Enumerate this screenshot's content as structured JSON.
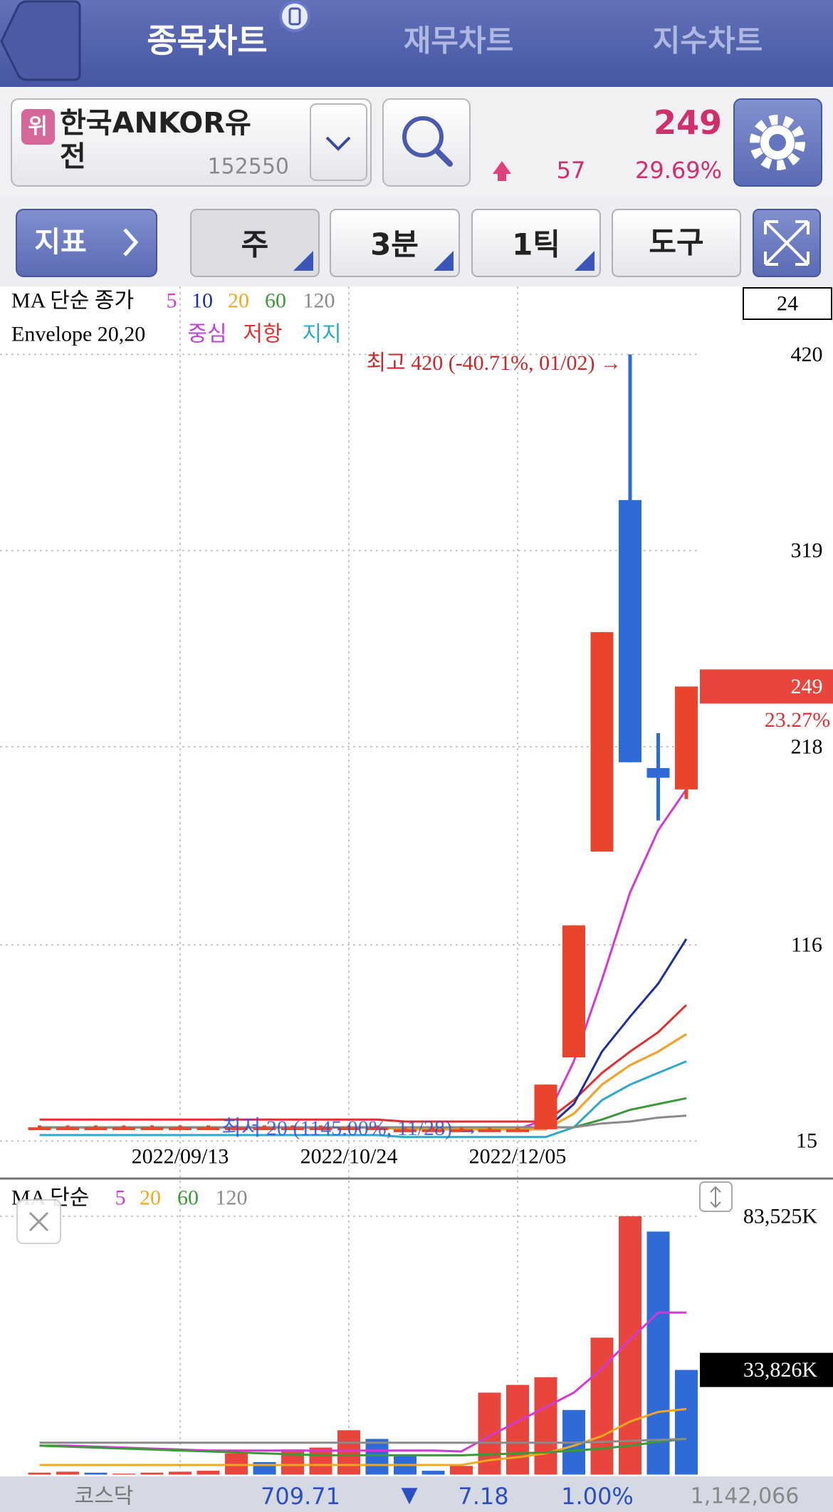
{
  "header": {
    "tabs": [
      "종목차트",
      "재무차트",
      "지수차트"
    ]
  },
  "stock": {
    "badge": "위",
    "name": "한국ANKOR유전",
    "code": "152550",
    "price": "249",
    "change": "57",
    "change_rate": "29.69%"
  },
  "toolbar": {
    "indicator": "지표",
    "buttons": [
      "주",
      "3분",
      "1틱",
      "도구"
    ]
  },
  "chart_data": [
    {
      "type": "candlestick",
      "legend_title": "MA 단순 종가",
      "envelope_title": "Envelope 20,20",
      "visible_count": 24,
      "categories": [
        null,
        null,
        null,
        null,
        null,
        "2022/09/13",
        null,
        null,
        null,
        null,
        null,
        "2022/10/24",
        null,
        null,
        null,
        null,
        null,
        "2022/12/05",
        null,
        null,
        null,
        null,
        null,
        null
      ],
      "open": [
        22,
        22,
        22,
        22,
        22,
        22,
        22,
        22,
        22,
        22,
        22,
        22,
        22,
        21,
        21,
        21,
        21,
        21,
        21,
        58,
        164,
        345,
        207,
        196
      ],
      "high": [
        23,
        23,
        23,
        23,
        23,
        23,
        23,
        23,
        23,
        23,
        23,
        23,
        23,
        22,
        22,
        22,
        22,
        22,
        44,
        126,
        277,
        420,
        225,
        249
      ],
      "low": [
        21,
        21,
        21,
        21,
        21,
        21,
        21,
        21,
        21,
        21,
        21,
        21,
        21,
        21,
        21,
        21,
        20,
        21,
        21,
        58,
        164,
        210,
        180,
        191
      ],
      "close": [
        22,
        22,
        22,
        22,
        22,
        22,
        22,
        22,
        22,
        22,
        22,
        22,
        22,
        21,
        21,
        21,
        21,
        21,
        44,
        126,
        277,
        210,
        202,
        249
      ],
      "up_color": "#e8452c",
      "down_color": "#2e6bd6",
      "series": [
        {
          "name": "5",
          "color": "#d23ad2",
          "values": [
            22,
            22,
            22,
            22,
            22,
            22,
            22,
            22,
            22,
            22,
            22,
            22,
            22,
            21,
            21,
            21,
            21,
            21,
            26,
            56,
            98,
            143,
            175,
            196
          ]
        },
        {
          "name": "10",
          "color": "#1c2f9c",
          "values": [
            22,
            22,
            22,
            22,
            22,
            22,
            22,
            22,
            22,
            22,
            22,
            22,
            22,
            21,
            21,
            21,
            21,
            21,
            21,
            34,
            61,
            79,
            96,
            119
          ]
        },
        {
          "name": "20",
          "color": "#f0a820",
          "values": [
            22,
            22,
            22,
            22,
            22,
            22,
            22,
            22,
            22,
            22,
            22,
            22,
            22,
            21,
            21,
            21,
            21,
            21,
            21,
            29,
            44,
            54,
            61,
            70
          ]
        },
        {
          "name": "60",
          "color": "#3a9a3a",
          "values": [
            22,
            22,
            22,
            22,
            22,
            22,
            22,
            22,
            22,
            22,
            22,
            22,
            22,
            22,
            22,
            22,
            22,
            22,
            22,
            22,
            26,
            31,
            34,
            37
          ]
        },
        {
          "name": "120",
          "color": "#8a8a8a",
          "values": [
            22,
            22,
            22,
            22,
            22,
            22,
            22,
            22,
            22,
            22,
            22,
            22,
            22,
            22,
            22,
            22,
            22,
            22,
            22,
            22,
            24,
            25,
            27,
            28
          ]
        }
      ],
      "envelope": [
        {
          "name": "중심",
          "color": "#c23ee0",
          "values": [
            22,
            22,
            22,
            22,
            22,
            22,
            22,
            22,
            22,
            22,
            22,
            22,
            22,
            21,
            21,
            21,
            21,
            21,
            21,
            29,
            44,
            54,
            61,
            70
          ]
        },
        {
          "name": "저항",
          "color": "#e03030",
          "values": [
            26,
            26,
            26,
            26,
            26,
            26,
            26,
            26,
            26,
            26,
            26,
            26,
            26,
            25,
            25,
            25,
            25,
            25,
            25,
            36,
            50,
            61,
            71,
            85
          ]
        },
        {
          "name": "지지",
          "color": "#2fa8c8",
          "values": [
            18,
            18,
            18,
            18,
            18,
            18,
            18,
            18,
            18,
            18,
            18,
            18,
            18,
            17,
            17,
            17,
            17,
            17,
            17,
            22,
            36,
            44,
            50,
            56
          ]
        }
      ],
      "ylim": [
        -4,
        455
      ],
      "yticks": [
        15,
        116,
        218,
        319,
        420
      ],
      "grid": true,
      "high_label": "최고 420 (-40.71%, 01/02) →",
      "low_label": "최저 20 (1145.00%, 11/28) →",
      "current_price": 249,
      "current_change": "23.27%"
    },
    {
      "type": "bar",
      "legend_title": "MA 단순",
      "values": [
        620,
        935,
        620,
        310,
        620,
        935,
        1247,
        6857,
        4052,
        8104,
        8728,
        14338,
        11533,
        6234,
        1247,
        2805,
        26494,
        28988,
        31482,
        20884,
        44261,
        83525,
        78548,
        33826
      ],
      "colors": [
        "#e8453c",
        "#e8453c",
        "#2e6bd6",
        "#e8453c",
        "#e8453c",
        "#e8453c",
        "#e8453c",
        "#e8453c",
        "#2e6bd6",
        "#e8453c",
        "#e8453c",
        "#e8453c",
        "#2e6bd6",
        "#2e6bd6",
        "#2e6bd6",
        "#e8453c",
        "#e8453c",
        "#e8453c",
        "#e8453c",
        "#2e6bd6",
        "#e8453c",
        "#e8453c",
        "#2e6bd6",
        "#2e6bd6"
      ],
      "series": [
        {
          "name": "5",
          "color": "#d23ad2",
          "values": [
            9351,
            9351,
            9040,
            8728,
            8417,
            8105,
            7794,
            7794,
            7794,
            7794,
            7794,
            7794,
            7794,
            7794,
            7794,
            7482,
            12468,
            17143,
            21819,
            26494,
            34287,
            43638,
            52365,
            52365
          ]
        },
        {
          "name": "20",
          "color": "#f0a820",
          "values": [
            3117,
            3117,
            3117,
            3117,
            3117,
            3117,
            3117,
            3117,
            3117,
            3117,
            3117,
            3117,
            3117,
            3117,
            3117,
            3117,
            4676,
            5611,
            6857,
            9351,
            12468,
            17143,
            20260,
            21196
          ]
        },
        {
          "name": "60",
          "color": "#3a9a3a",
          "values": [
            9351,
            9040,
            8728,
            8417,
            8105,
            7794,
            7482,
            7171,
            6859,
            6547,
            6234,
            6234,
            6234,
            6234,
            6234,
            6234,
            6547,
            6859,
            7171,
            7794,
            8417,
            9351,
            10598,
            11533
          ]
        },
        {
          "name": "120",
          "color": "#8a8a8a",
          "values": [
            10286,
            10286,
            10286,
            10286,
            10286,
            10286,
            10286,
            10286,
            10286,
            10286,
            10286,
            10286,
            10286,
            10286,
            10286,
            10286,
            10286,
            10286,
            10286,
            10286,
            10598,
            10910,
            11222,
            11533
          ]
        }
      ],
      "ylim": [
        0,
        95000
      ],
      "yticks": [
        {
          "value": 83525,
          "label": "83,525K"
        }
      ],
      "grid": true,
      "current_value": {
        "value": 33826,
        "label": "33,826K"
      }
    }
  ],
  "footer": {
    "market": "코스닥",
    "index": "709.71",
    "direction": "▼",
    "change": "7.18",
    "change_rate": "1.00%",
    "volume": "1,142,066"
  }
}
